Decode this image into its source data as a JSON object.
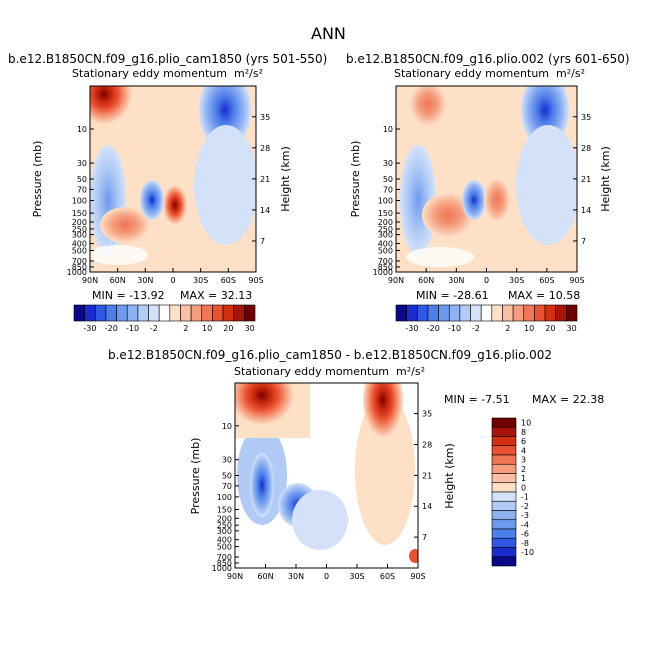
{
  "page_title": "ANN",
  "panels": [
    {
      "case": "b.e12.B1850CN.f09_g16.plio_cam1850 (yrs 501-550)",
      "field": "Stationary eddy momentum",
      "units": "m²/s²",
      "min_label": "MIN = -13.92",
      "max_label": "MAX = 32.13"
    },
    {
      "case": "b.e12.B1850CN.f09_g16.plio.002 (yrs 601-650)",
      "field": "Stationary eddy momentum",
      "units": "m²/s²",
      "min_label": "MIN = -28.61",
      "max_label": "MAX = 10.58"
    },
    {
      "case": "b.e12.B1850CN.f09_g16.plio_cam1850 - b.e12.B1850CN.f09_g16.plio.002",
      "field": "Stationary eddy momentum",
      "units": "m²/s²",
      "min_label": "MIN = -7.51",
      "max_label": "MAX = 22.38"
    }
  ],
  "axis_labels": {
    "ylabel_left": "Pressure (mb)",
    "ylabel_right": "Height (km)"
  },
  "colorbar_top": {
    "labels": [
      "-30",
      "-20",
      "-10",
      "-2",
      "2",
      "10",
      "20",
      "30"
    ],
    "colors": [
      "#08088a",
      "#1a2bd0",
      "#2f58e3",
      "#4d7fea",
      "#6e9aee",
      "#8eb1f2",
      "#b1cbf6",
      "#d3e2f9",
      "#ffffff",
      "#fde0c6",
      "#f9c0a3",
      "#f59c7c",
      "#f07654",
      "#ea5130",
      "#d4300f",
      "#a8130a",
      "#700000"
    ]
  },
  "colorbar_diff": {
    "labels": [
      "10",
      "8",
      "6",
      "4",
      "3",
      "2",
      "1",
      "0",
      "-1",
      "-2",
      "-3",
      "-4",
      "-6",
      "-8",
      "-10"
    ],
    "colors": [
      "#700000",
      "#a8130a",
      "#d4300f",
      "#ea5130",
      "#f07654",
      "#f59c7c",
      "#f9c0a3",
      "#fde0c6",
      "#d3e2f9",
      "#b1cbf6",
      "#8eb1f2",
      "#6e9aee",
      "#4d7fea",
      "#2f58e3",
      "#1a2bd0",
      "#08088a"
    ]
  },
  "chart_data": [
    {
      "type": "contour",
      "title": "b.e12.B1850CN.f09_g16.plio_cam1850 (yrs 501-550)",
      "subtitle": "Stationary eddy momentum m²/s²",
      "xlabel": "",
      "ylabel": "Pressure (mb)",
      "ylabel_right": "Height (km)",
      "x_ticks": [
        "90N",
        "60N",
        "30N",
        "0",
        "30S",
        "60S",
        "90S"
      ],
      "y_ticks": [
        "10",
        "30",
        "50",
        "70",
        "100",
        "150",
        "200",
        "250",
        "300",
        "400",
        "500",
        "700",
        "850",
        "1000"
      ],
      "y_right_ticks": [
        "35",
        "28",
        "21",
        "14",
        "7"
      ],
      "min": -13.92,
      "max": 32.13
    },
    {
      "type": "contour",
      "title": "b.e12.B1850CN.f09_g16.plio.002 (yrs 601-650)",
      "subtitle": "Stationary eddy momentum m²/s²",
      "xlabel": "",
      "ylabel": "Pressure (mb)",
      "ylabel_right": "Height (km)",
      "x_ticks": [
        "90N",
        "60N",
        "30N",
        "0",
        "30S",
        "60S",
        "90S"
      ],
      "y_ticks": [
        "10",
        "30",
        "50",
        "70",
        "100",
        "150",
        "200",
        "250",
        "300",
        "400",
        "500",
        "700",
        "850",
        "1000"
      ],
      "y_right_ticks": [
        "35",
        "28",
        "21",
        "14",
        "7"
      ],
      "min": -28.61,
      "max": 10.58
    },
    {
      "type": "contour",
      "title": "b.e12.B1850CN.f09_g16.plio_cam1850 - b.e12.B1850CN.f09_g16.plio.002",
      "subtitle": "Stationary eddy momentum m²/s²",
      "xlabel": "",
      "ylabel": "Pressure (mb)",
      "ylabel_right": "Height (km)",
      "x_ticks": [
        "90N",
        "60N",
        "30N",
        "0",
        "30S",
        "60S",
        "90S"
      ],
      "y_ticks": [
        "10",
        "30",
        "50",
        "70",
        "100",
        "150",
        "200",
        "250",
        "300",
        "400",
        "500",
        "700",
        "850",
        "1000"
      ],
      "y_right_ticks": [
        "35",
        "28",
        "21",
        "14",
        "7"
      ],
      "min": -7.51,
      "max": 22.38
    }
  ]
}
